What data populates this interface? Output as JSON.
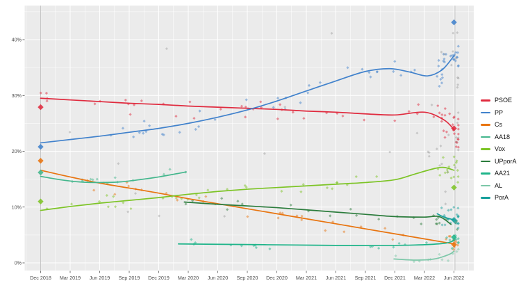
{
  "chart_data": {
    "type": "scatter",
    "title": "",
    "xlabel": "",
    "ylabel": "",
    "x_axis": {
      "tick_months": [
        0,
        3,
        6,
        9,
        12,
        15,
        18,
        21,
        24,
        27,
        30,
        33,
        36,
        39,
        42
      ],
      "tick_labels": [
        "Dec 2018",
        "Mar 2019",
        "Jun 2019",
        "Sep 2019",
        "Dec 2019",
        "Mar 2020",
        "Jun 2020",
        "Sep 2020",
        "Dec 2020",
        "Mar 2021",
        "Jun 2021",
        "Sep 2021",
        "Dec 2021",
        "Mar 2022",
        "Jun 2022"
      ]
    },
    "y_axis": {
      "tick_values": [
        0,
        10,
        20,
        30,
        40
      ],
      "tick_labels": [
        "0%",
        "10%",
        "20%",
        "30%",
        "40%"
      ],
      "minor_values": [
        5,
        15,
        25,
        35,
        45
      ],
      "range": [
        0,
        46
      ]
    },
    "style": {
      "panel_bg": "#ebebeb",
      "grid_color": "#ffffff",
      "tick_text_color": "#4d4d4d",
      "tick_mark_color": "#333333",
      "election_line_color": "#c0c0c0"
    },
    "election_lines_months": [
      0,
      42.1
    ],
    "series": [
      {
        "name": "PSOE",
        "color": "#e02a3e",
        "jitter": 2.2,
        "n": 36,
        "end_n": 26,
        "range": [
          0,
          40
        ],
        "trend": [
          [
            0,
            29.5
          ],
          [
            3,
            29.2
          ],
          [
            6,
            28.9
          ],
          [
            9,
            28.6
          ],
          [
            12,
            28.4
          ],
          [
            15,
            28.1
          ],
          [
            18,
            27.9
          ],
          [
            21,
            27.7
          ],
          [
            24,
            27.5
          ],
          [
            27,
            27.2
          ],
          [
            30,
            27.0
          ],
          [
            33,
            26.7
          ],
          [
            36,
            26.5
          ],
          [
            39,
            27.0
          ],
          [
            41,
            25.6
          ],
          [
            42,
            23.9
          ]
        ]
      },
      {
        "name": "PP",
        "color": "#4182cc",
        "jitter": 2.4,
        "n": 36,
        "end_n": 28,
        "range": [
          0,
          40
        ],
        "trend": [
          [
            0,
            21.5
          ],
          [
            3,
            22.1
          ],
          [
            6,
            22.7
          ],
          [
            9,
            23.4
          ],
          [
            12,
            24.1
          ],
          [
            15,
            25.0
          ],
          [
            18,
            26.1
          ],
          [
            21,
            27.4
          ],
          [
            24,
            29.0
          ],
          [
            27,
            30.8
          ],
          [
            30,
            32.6
          ],
          [
            33,
            34.3
          ],
          [
            35.5,
            34.8
          ],
          [
            37.5,
            34.2
          ],
          [
            39.3,
            33.5
          ],
          [
            40.8,
            34.6
          ],
          [
            42,
            37.1
          ]
        ]
      },
      {
        "name": "Cs",
        "color": "#e8740f",
        "jitter": 1.6,
        "n": 26,
        "end_n": 10,
        "range": [
          0,
          40
        ],
        "trend": [
          [
            0,
            16.6
          ],
          [
            3,
            15.4
          ],
          [
            6,
            14.3
          ],
          [
            9,
            13.4
          ],
          [
            12,
            12.5
          ],
          [
            15,
            11.5
          ],
          [
            18,
            10.6
          ],
          [
            21,
            9.7
          ],
          [
            24,
            8.8
          ],
          [
            27,
            7.9
          ],
          [
            30,
            7.0
          ],
          [
            33,
            6.1
          ],
          [
            36,
            5.2
          ],
          [
            39,
            4.3
          ],
          [
            42,
            3.4
          ]
        ]
      },
      {
        "name": "AA18",
        "color": "#43b68c",
        "jitter": 1.2,
        "n": 13,
        "end_n": 0,
        "range": [
          0,
          14.8
        ],
        "trend": [
          [
            0,
            15.5
          ],
          [
            2,
            14.9
          ],
          [
            4,
            14.5
          ],
          [
            6,
            14.4
          ],
          [
            8,
            14.5
          ],
          [
            10,
            14.9
          ],
          [
            12,
            15.4
          ],
          [
            14.8,
            16.3
          ]
        ]
      },
      {
        "name": "Vox",
        "color": "#7dc426",
        "jitter": 1.8,
        "n": 30,
        "end_n": 16,
        "range": [
          0,
          40
        ],
        "trend": [
          [
            0,
            9.4
          ],
          [
            3,
            10.1
          ],
          [
            6,
            10.7
          ],
          [
            9,
            11.2
          ],
          [
            12,
            11.7
          ],
          [
            15,
            12.3
          ],
          [
            18,
            12.8
          ],
          [
            21,
            13.2
          ],
          [
            24,
            13.5
          ],
          [
            27,
            13.8
          ],
          [
            30,
            14.1
          ],
          [
            33,
            14.4
          ],
          [
            36,
            14.9
          ],
          [
            38,
            15.9
          ],
          [
            40,
            16.9
          ],
          [
            41,
            17.1
          ],
          [
            42,
            16.6
          ]
        ]
      },
      {
        "name": "UPporA",
        "color": "#2b7c3c",
        "jitter": 1.5,
        "n": 20,
        "end_n": 6,
        "range": [
          14.6,
          40.5
        ],
        "trend": [
          [
            14.6,
            10.9
          ],
          [
            18,
            10.5
          ],
          [
            21,
            10.2
          ],
          [
            24,
            9.9
          ],
          [
            27,
            9.5
          ],
          [
            30,
            9.1
          ],
          [
            33,
            8.7
          ],
          [
            36,
            8.3
          ],
          [
            39,
            8.2
          ],
          [
            40.5,
            8.3
          ],
          [
            41.7,
            6.9
          ]
        ]
      },
      {
        "name": "AA21",
        "color": "#1eb489",
        "jitter": 1.0,
        "n": 16,
        "end_n": 10,
        "range": [
          14,
          40.2
        ],
        "trend": [
          [
            14,
            3.4
          ],
          [
            20,
            3.3
          ],
          [
            26,
            3.2
          ],
          [
            32,
            3.1
          ],
          [
            38,
            3.2
          ],
          [
            41,
            3.5
          ],
          [
            42,
            4.0
          ]
        ]
      },
      {
        "name": "AL",
        "color": "#7cc7a8",
        "jitter": 0.7,
        "n": 5,
        "end_n": 7,
        "range": [
          35.9,
          40.5
        ],
        "trend": [
          [
            35.9,
            0.7
          ],
          [
            38,
            0.5
          ],
          [
            40,
            0.7
          ],
          [
            41.5,
            1.5
          ],
          [
            42,
            2.1
          ]
        ]
      },
      {
        "name": "PorA",
        "color": "#169f9b",
        "jitter": 1.4,
        "n": 0,
        "end_n": 22,
        "range": [
          40.2,
          42.4
        ],
        "trend": [
          [
            40.3,
            8.8
          ],
          [
            41,
            8.2
          ],
          [
            42,
            7.7
          ]
        ]
      }
    ],
    "background_points": {
      "color": "#8c8c8c",
      "n_base": 12,
      "n_end": 30,
      "pct_min": 8,
      "pct_max": 42
    },
    "election_results": [
      {
        "election": "Dec 2018",
        "month": 0,
        "values": [
          {
            "party": "PSOE",
            "pct": 27.9
          },
          {
            "party": "PP",
            "pct": 20.8
          },
          {
            "party": "Cs",
            "pct": 18.3
          },
          {
            "party": "AA18",
            "pct": 16.2
          },
          {
            "party": "Vox",
            "pct": 11.0
          }
        ]
      },
      {
        "election": "Jun 2022",
        "month": 42,
        "values": [
          {
            "party": "PP",
            "pct": 43.1
          },
          {
            "party": "PSOE",
            "pct": 24.1
          },
          {
            "party": "Vox",
            "pct": 13.5
          },
          {
            "party": "PorA",
            "pct": 7.7
          },
          {
            "party": "AA21",
            "pct": 4.6
          },
          {
            "party": "Cs",
            "pct": 3.3
          }
        ]
      }
    ],
    "scatter_seed": 20220619
  },
  "legend": {
    "items": [
      "PSOE",
      "PP",
      "Cs",
      "AA18",
      "Vox",
      "UPporA",
      "AA21",
      "AL",
      "PorA"
    ]
  }
}
